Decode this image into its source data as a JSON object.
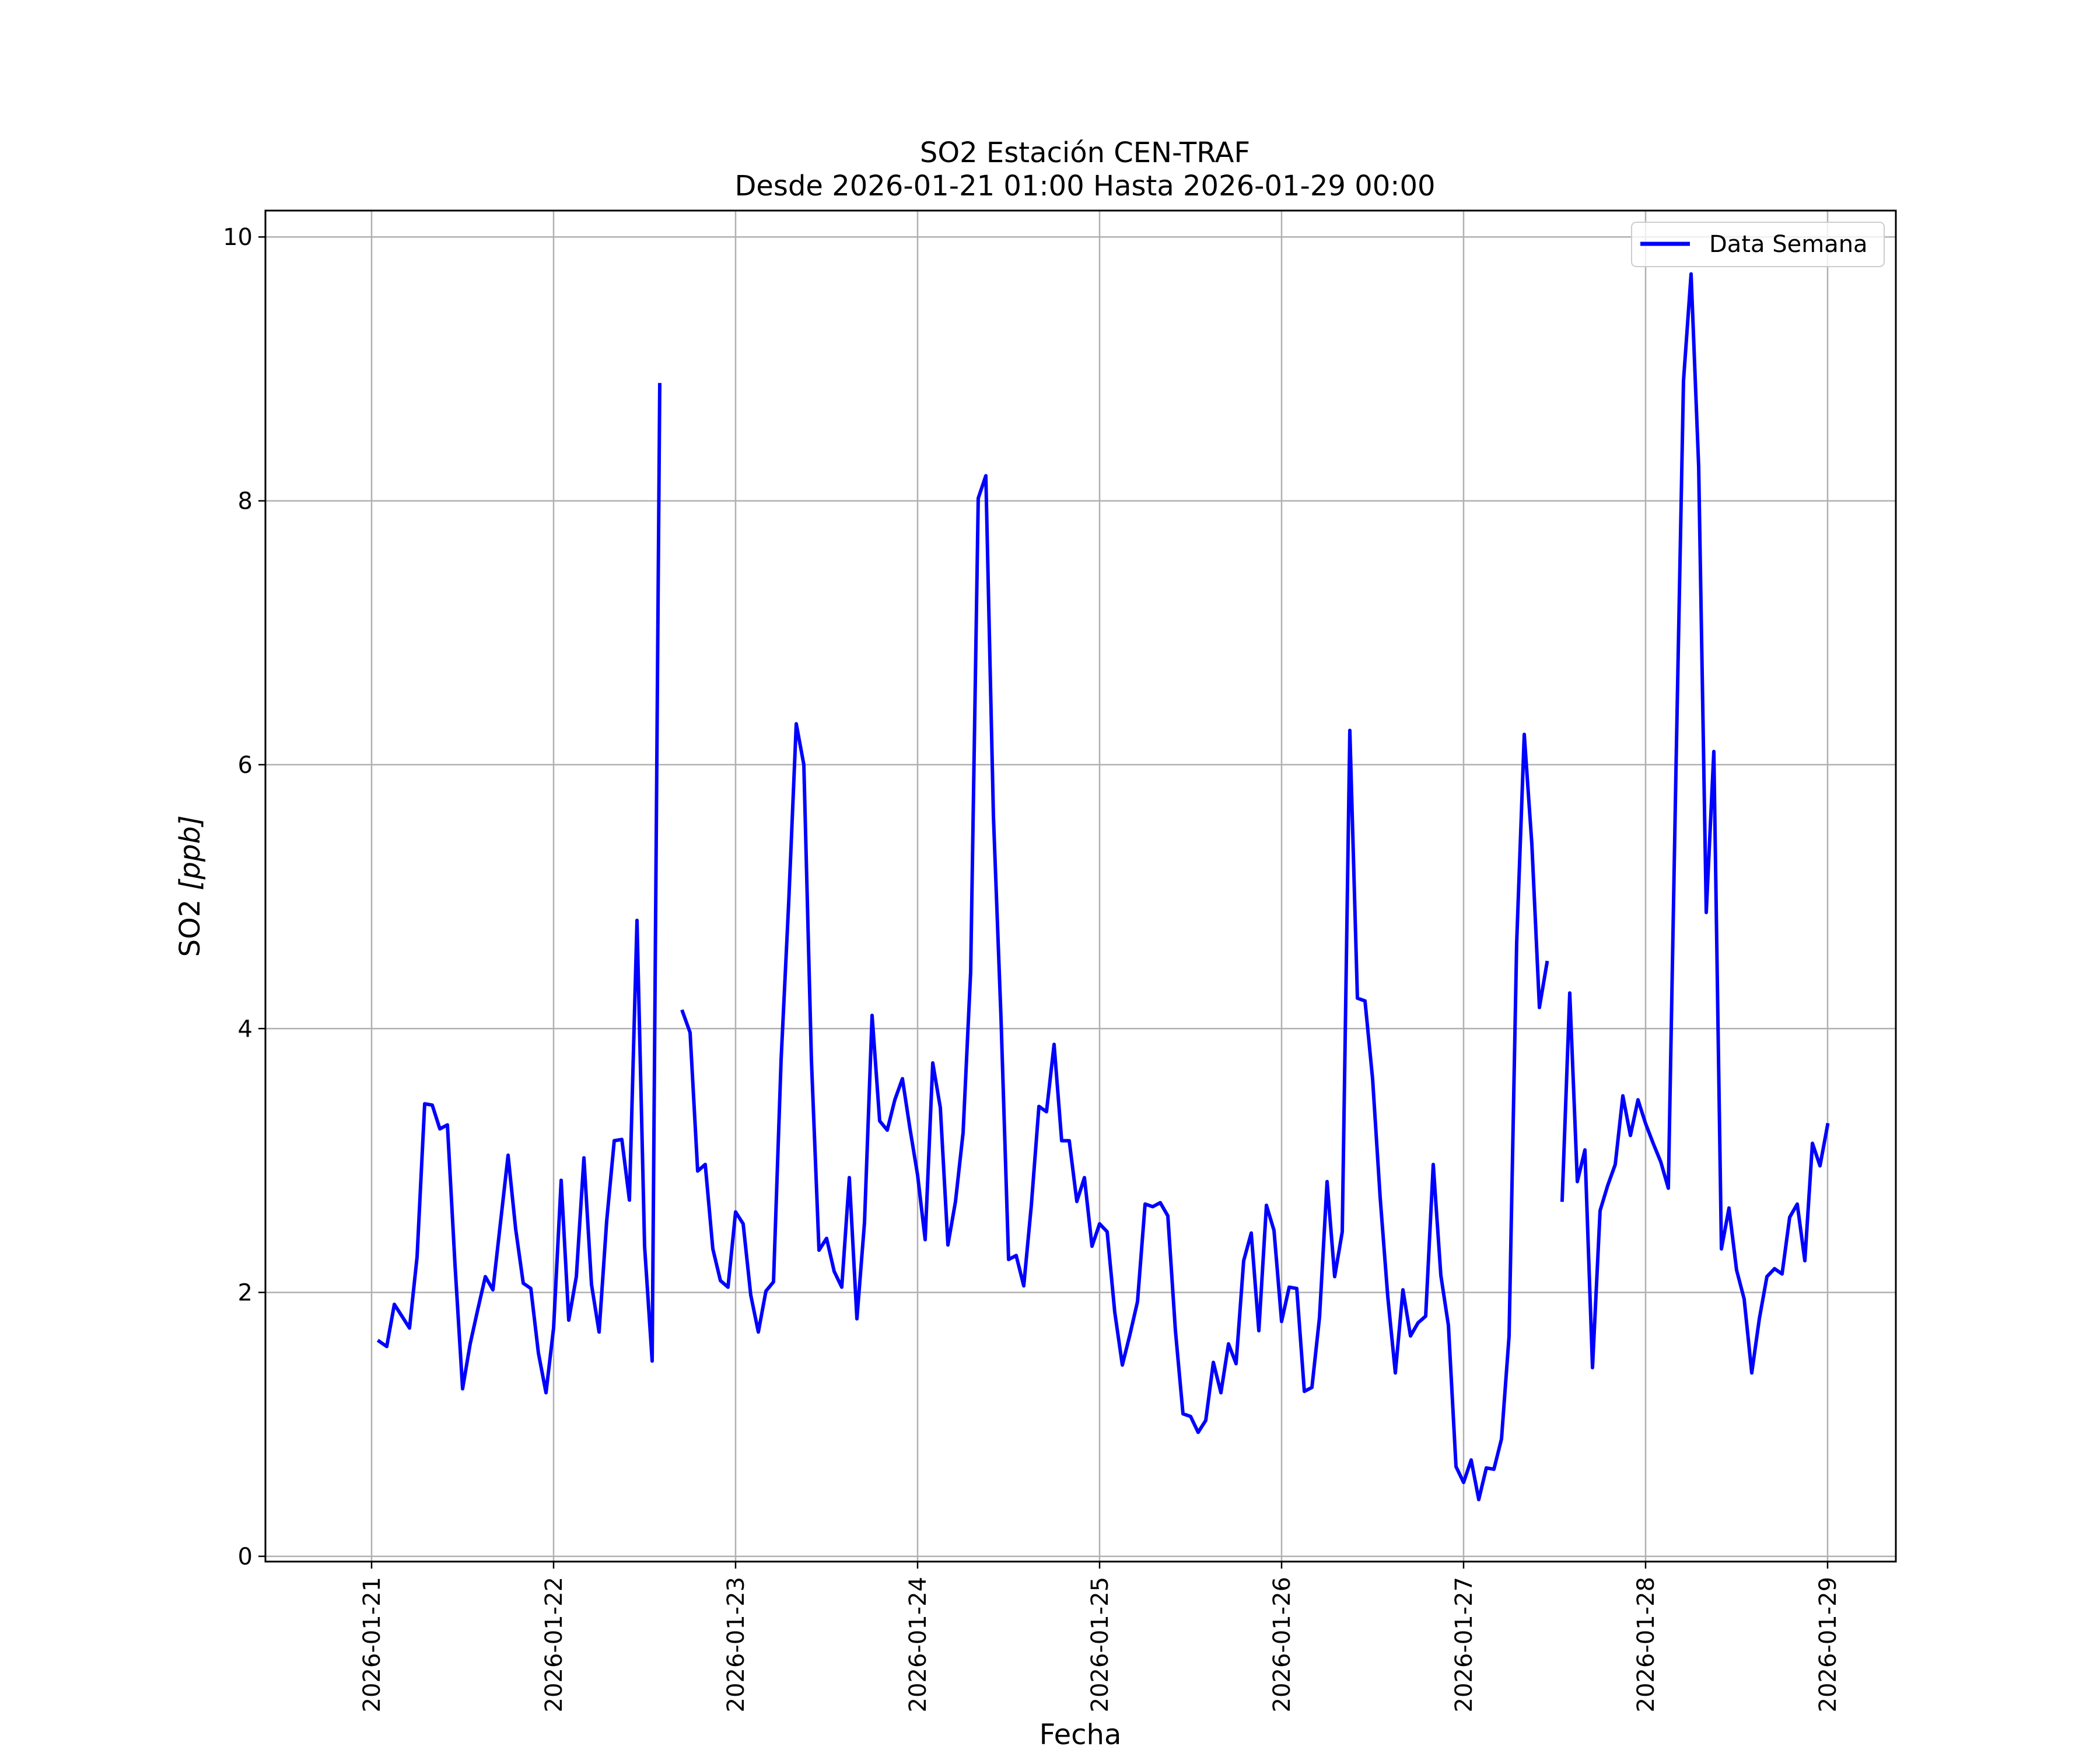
{
  "chart_data": {
    "type": "line",
    "title": "SO2 Estación CEN-TRAF",
    "subtitle": "Desde 2026-01-21 01:00 Hasta 2026-01-29 00:00",
    "xlabel": "Fecha",
    "ylabel": "SO2 [ppb]",
    "ylabel_main": "SO2 ",
    "ylabel_unit": "[ppb]",
    "x_tick_labels": [
      "2026-01-21",
      "2026-01-22",
      "2026-01-23",
      "2026-01-24",
      "2026-01-25",
      "2026-01-26",
      "2026-01-27",
      "2026-01-28",
      "2026-01-29"
    ],
    "y_tick_labels": [
      "0",
      "2",
      "4",
      "6",
      "8",
      "10"
    ],
    "y_ticks": [
      0,
      2,
      4,
      6,
      8,
      10
    ],
    "ylim": [
      -0.04,
      10.2
    ],
    "xlim": [
      "2026-01-20 10:00",
      "2026-01-29 09:00"
    ],
    "grid": true,
    "legend_placement": "top-right",
    "series": [
      {
        "name": "Data Semana",
        "color": "#0000ff",
        "x": [
          "2026-01-21 01:00",
          "2026-01-21 02:00",
          "2026-01-21 03:00",
          "2026-01-21 04:00",
          "2026-01-21 05:00",
          "2026-01-21 06:00",
          "2026-01-21 07:00",
          "2026-01-21 08:00",
          "2026-01-21 09:00",
          "2026-01-21 10:00",
          "2026-01-21 11:00",
          "2026-01-21 12:00",
          "2026-01-21 13:00",
          "2026-01-21 14:00",
          "2026-01-21 15:00",
          "2026-01-21 16:00",
          "2026-01-21 17:00",
          "2026-01-21 18:00",
          "2026-01-21 19:00",
          "2026-01-21 20:00",
          "2026-01-21 21:00",
          "2026-01-21 22:00",
          "2026-01-21 23:00",
          "2026-01-22 00:00",
          "2026-01-22 01:00",
          "2026-01-22 02:00",
          "2026-01-22 03:00",
          "2026-01-22 04:00",
          "2026-01-22 05:00",
          "2026-01-22 06:00",
          "2026-01-22 07:00",
          "2026-01-22 08:00",
          "2026-01-22 09:00",
          "2026-01-22 10:00",
          "2026-01-22 11:00",
          "2026-01-22 12:00",
          "2026-01-22 13:00",
          "2026-01-22 14:00",
          "2026-01-22 17:00",
          "2026-01-22 18:00",
          "2026-01-22 19:00",
          "2026-01-22 20:00",
          "2026-01-22 21:00",
          "2026-01-22 22:00",
          "2026-01-22 23:00",
          "2026-01-23 00:00",
          "2026-01-23 01:00",
          "2026-01-23 02:00",
          "2026-01-23 03:00",
          "2026-01-23 04:00",
          "2026-01-23 05:00",
          "2026-01-23 06:00",
          "2026-01-23 07:00",
          "2026-01-23 08:00",
          "2026-01-23 09:00",
          "2026-01-23 10:00",
          "2026-01-23 11:00",
          "2026-01-23 12:00",
          "2026-01-23 13:00",
          "2026-01-23 14:00",
          "2026-01-23 15:00",
          "2026-01-23 16:00",
          "2026-01-23 17:00",
          "2026-01-23 18:00",
          "2026-01-23 19:00",
          "2026-01-23 20:00",
          "2026-01-23 21:00",
          "2026-01-23 22:00",
          "2026-01-23 23:00",
          "2026-01-24 00:00",
          "2026-01-24 01:00",
          "2026-01-24 02:00",
          "2026-01-24 03:00",
          "2026-01-24 04:00",
          "2026-01-24 05:00",
          "2026-01-24 06:00",
          "2026-01-24 07:00",
          "2026-01-24 08:00",
          "2026-01-24 09:00",
          "2026-01-24 10:00",
          "2026-01-24 11:00",
          "2026-01-24 12:00",
          "2026-01-24 13:00",
          "2026-01-24 14:00",
          "2026-01-24 15:00",
          "2026-01-24 16:00",
          "2026-01-24 17:00",
          "2026-01-24 18:00",
          "2026-01-24 19:00",
          "2026-01-24 20:00",
          "2026-01-24 21:00",
          "2026-01-24 22:00",
          "2026-01-24 23:00",
          "2026-01-25 00:00",
          "2026-01-25 01:00",
          "2026-01-25 02:00",
          "2026-01-25 03:00",
          "2026-01-25 04:00",
          "2026-01-25 05:00",
          "2026-01-25 06:00",
          "2026-01-25 07:00",
          "2026-01-25 08:00",
          "2026-01-25 09:00",
          "2026-01-25 10:00",
          "2026-01-25 11:00",
          "2026-01-25 12:00",
          "2026-01-25 13:00",
          "2026-01-25 14:00",
          "2026-01-25 15:00",
          "2026-01-25 16:00",
          "2026-01-25 17:00",
          "2026-01-25 18:00",
          "2026-01-25 19:00",
          "2026-01-25 20:00",
          "2026-01-25 21:00",
          "2026-01-25 22:00",
          "2026-01-25 23:00",
          "2026-01-26 00:00",
          "2026-01-26 01:00",
          "2026-01-26 02:00",
          "2026-01-26 03:00",
          "2026-01-26 04:00",
          "2026-01-26 05:00",
          "2026-01-26 06:00",
          "2026-01-26 07:00",
          "2026-01-26 08:00",
          "2026-01-26 09:00",
          "2026-01-26 10:00",
          "2026-01-26 11:00",
          "2026-01-26 12:00",
          "2026-01-26 13:00",
          "2026-01-26 14:00",
          "2026-01-26 15:00",
          "2026-01-26 16:00",
          "2026-01-26 17:00",
          "2026-01-26 18:00",
          "2026-01-26 19:00",
          "2026-01-26 20:00",
          "2026-01-26 21:00",
          "2026-01-26 22:00",
          "2026-01-26 23:00",
          "2026-01-27 00:00",
          "2026-01-27 01:00",
          "2026-01-27 02:00",
          "2026-01-27 03:00",
          "2026-01-27 04:00",
          "2026-01-27 05:00",
          "2026-01-27 06:00",
          "2026-01-27 07:00",
          "2026-01-27 08:00",
          "2026-01-27 09:00",
          "2026-01-27 10:00",
          "2026-01-27 11:00",
          "2026-01-27 13:00",
          "2026-01-27 14:00",
          "2026-01-27 15:00",
          "2026-01-27 16:00",
          "2026-01-27 17:00",
          "2026-01-27 18:00",
          "2026-01-27 19:00",
          "2026-01-27 20:00",
          "2026-01-27 21:00",
          "2026-01-27 22:00",
          "2026-01-27 23:00",
          "2026-01-28 00:00",
          "2026-01-28 01:00",
          "2026-01-28 02:00",
          "2026-01-28 03:00",
          "2026-01-28 04:00",
          "2026-01-28 05:00",
          "2026-01-28 06:00",
          "2026-01-28 07:00",
          "2026-01-28 08:00",
          "2026-01-28 09:00",
          "2026-01-28 10:00",
          "2026-01-28 11:00",
          "2026-01-28 12:00",
          "2026-01-28 13:00",
          "2026-01-28 14:00",
          "2026-01-28 15:00",
          "2026-01-28 16:00",
          "2026-01-28 17:00",
          "2026-01-28 18:00",
          "2026-01-28 19:00",
          "2026-01-28 20:00",
          "2026-01-28 21:00",
          "2026-01-28 22:00",
          "2026-01-28 23:00",
          "2026-01-29 00:00"
        ],
        "y": [
          1.63,
          1.59,
          1.91,
          1.82,
          1.73,
          2.27,
          3.43,
          3.42,
          3.24,
          3.27,
          2.21,
          1.27,
          1.61,
          1.87,
          2.12,
          2.02,
          2.53,
          3.04,
          2.48,
          2.07,
          2.03,
          1.54,
          1.24,
          1.73,
          2.85,
          1.79,
          2.12,
          3.02,
          2.06,
          1.7,
          2.54,
          3.15,
          3.16,
          2.7,
          4.82,
          2.35,
          1.48,
          8.88,
          4.13,
          3.97,
          2.92,
          2.97,
          2.33,
          2.09,
          2.04,
          2.61,
          2.52,
          1.98,
          1.7,
          2.01,
          2.08,
          3.76,
          4.95,
          6.31,
          6.0,
          3.76,
          2.32,
          2.41,
          2.16,
          2.04,
          2.87,
          1.8,
          2.53,
          4.1,
          3.3,
          3.23,
          3.46,
          3.62,
          3.24,
          2.89,
          2.4,
          3.74,
          3.4,
          2.36,
          2.69,
          3.21,
          4.43,
          8.02,
          8.19,
          5.61,
          4.08,
          2.25,
          2.28,
          2.05,
          2.66,
          3.41,
          3.37,
          3.88,
          3.15,
          3.15,
          2.69,
          2.87,
          2.35,
          2.52,
          2.46,
          1.85,
          1.45,
          1.68,
          1.93,
          2.67,
          2.65,
          2.68,
          2.58,
          1.71,
          1.08,
          1.06,
          0.94,
          1.03,
          1.47,
          1.24,
          1.61,
          1.46,
          2.24,
          2.45,
          1.71,
          2.66,
          2.47,
          1.78,
          2.04,
          2.03,
          1.25,
          1.28,
          1.81,
          2.84,
          2.12,
          2.46,
          6.26,
          4.23,
          4.21,
          3.62,
          2.72,
          1.97,
          1.39,
          2.02,
          1.67,
          1.77,
          1.82,
          2.97,
          2.13,
          1.75,
          0.68,
          0.56,
          0.73,
          0.43,
          0.67,
          0.66,
          0.89,
          1.67,
          4.65,
          6.23,
          5.4,
          4.16,
          4.5,
          2.7,
          4.27,
          2.84,
          3.08,
          1.43,
          2.62,
          2.81,
          2.97,
          3.49,
          3.19,
          3.46,
          3.28,
          3.13,
          2.99,
          2.79,
          5.94,
          8.91,
          9.72,
          8.26,
          4.88,
          6.1,
          2.33,
          2.64,
          2.17,
          1.95,
          1.39,
          1.8,
          2.12,
          2.18,
          2.14,
          2.57,
          2.67,
          2.24,
          3.13,
          2.96,
          3.27
        ]
      }
    ]
  }
}
